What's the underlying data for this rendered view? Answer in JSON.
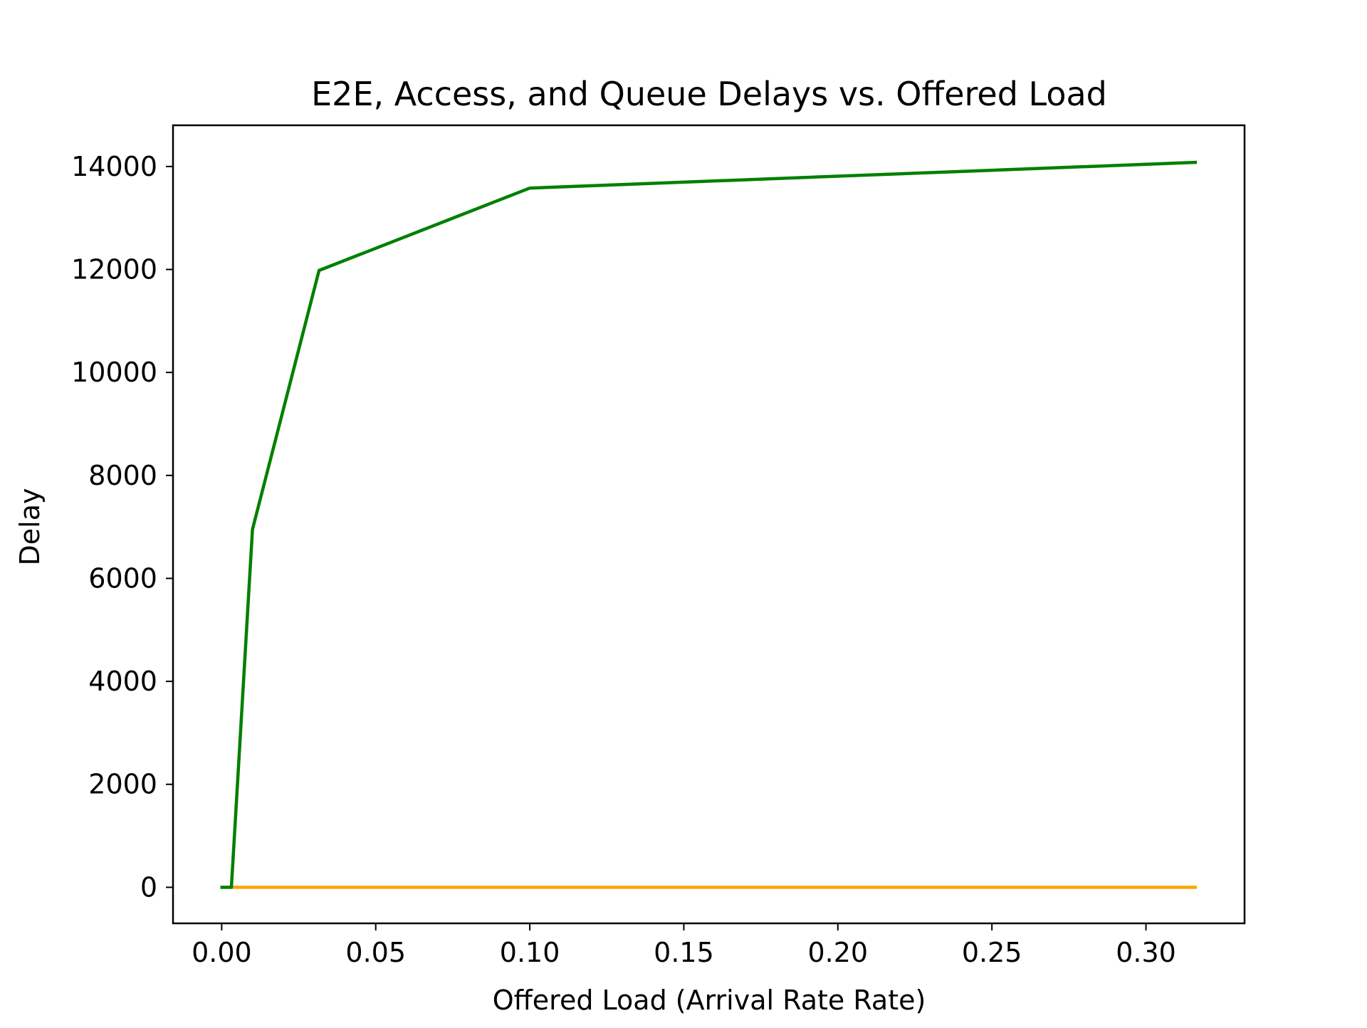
{
  "chart_data": {
    "type": "line",
    "title": "E2E, Access, and Queue Delays vs. Offered Load",
    "xlabel": "Offered Load (Arrival Rate Rate)",
    "ylabel": "Delay",
    "xlim": [
      -0.0158,
      0.332
    ],
    "ylim": [
      -700,
      14800
    ],
    "xticks": [
      0.0,
      0.05,
      0.1,
      0.15,
      0.2,
      0.25,
      0.3
    ],
    "xtick_labels": [
      "0.00",
      "0.05",
      "0.10",
      "0.15",
      "0.20",
      "0.25",
      "0.30"
    ],
    "yticks": [
      0,
      2000,
      4000,
      6000,
      8000,
      10000,
      12000,
      14000
    ],
    "ytick_labels": [
      "0",
      "2000",
      "4000",
      "6000",
      "8000",
      "10000",
      "12000",
      "14000"
    ],
    "grid": false,
    "x": [
      0.0001,
      0.000316,
      0.001,
      0.00316,
      0.01,
      0.0316,
      0.1,
      0.316
    ],
    "series": [
      {
        "color": "#ffa500",
        "values": [
          0,
          0,
          0,
          0,
          0,
          0,
          0,
          0
        ]
      },
      {
        "color": "#008000",
        "values": [
          0,
          0,
          0,
          0,
          6950,
          11980,
          13580,
          14080
        ]
      }
    ]
  }
}
